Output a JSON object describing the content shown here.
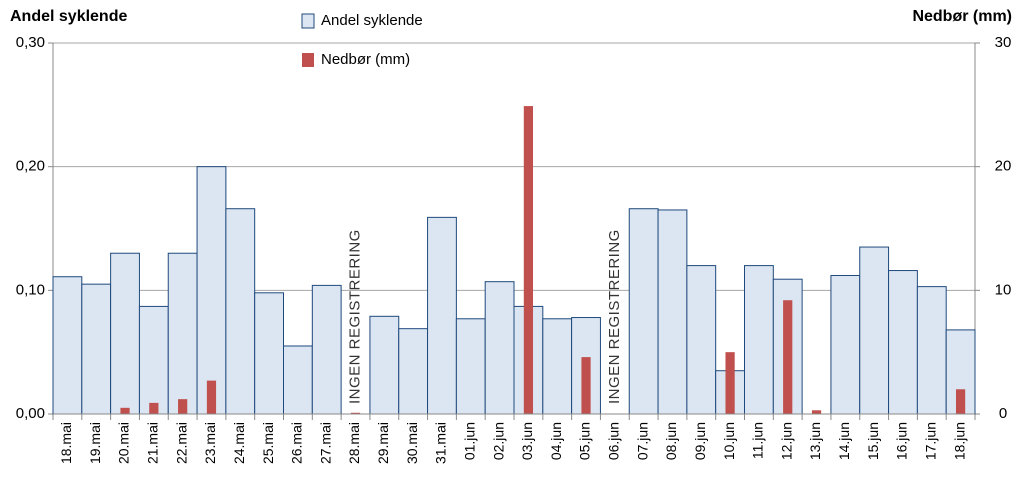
{
  "chart_data": {
    "type": "bar-combo",
    "y_title": "Andel syklende",
    "y2_title": "Nedbør (mm)",
    "categories": [
      "18.mai",
      "19.mai",
      "20.mai",
      "21.mai",
      "22.mai",
      "23.mai",
      "24.mai",
      "25.mai",
      "26.mai",
      "27.mai",
      "28.mai",
      "29.mai",
      "30.mai",
      "31.mai",
      "01.jun",
      "02.jun",
      "03.jun",
      "04.jun",
      "05.jun",
      "06.jun",
      "07.jun",
      "08.jun",
      "09.jun",
      "10.jun",
      "11.jun",
      "12.jun",
      "13.jun",
      "14.jun",
      "15.jun",
      "16.jun",
      "17.jun",
      "18.jun"
    ],
    "series": [
      {
        "name": "Andel syklende",
        "color": "#dce6f2",
        "stroke": "#1f497d",
        "values": [
          0.111,
          0.105,
          0.13,
          0.087,
          0.13,
          0.2,
          0.166,
          0.098,
          0.055,
          0.104,
          null,
          0.079,
          0.069,
          0.159,
          0.077,
          0.107,
          0.087,
          0.077,
          0.078,
          null,
          0.166,
          0.165,
          0.12,
          0.035,
          0.12,
          0.109,
          null,
          0.112,
          0.135,
          0.116,
          0.103,
          0.068
        ]
      },
      {
        "name": "Nedbør (mm)",
        "color": "#c0504d",
        "axis": "y2",
        "values": [
          0,
          0,
          0.5,
          0.9,
          1.2,
          2.7,
          0,
          0,
          0,
          0,
          0.1,
          0,
          0,
          0,
          0,
          0,
          24.9,
          0,
          4.6,
          0,
          0,
          0,
          0,
          5.0,
          0,
          9.2,
          0.3,
          0,
          0,
          0,
          0,
          2.0
        ]
      }
    ],
    "ylim": [
      0,
      0.3
    ],
    "yticks": [
      {
        "value": 0,
        "label": "0,00"
      },
      {
        "value": 0.1,
        "label": "0,10"
      },
      {
        "value": 0.2,
        "label": "0,20"
      },
      {
        "value": 0.3,
        "label": "0,30"
      }
    ],
    "y2lim": [
      0,
      30
    ],
    "y2ticks": [
      0,
      10,
      20,
      30
    ],
    "grid": true,
    "annotations": [
      {
        "text": "INGEN REGISTRERING",
        "category": "28.mai"
      },
      {
        "text": "INGEN REGISTRERING",
        "category": "06.jun"
      }
    ]
  }
}
